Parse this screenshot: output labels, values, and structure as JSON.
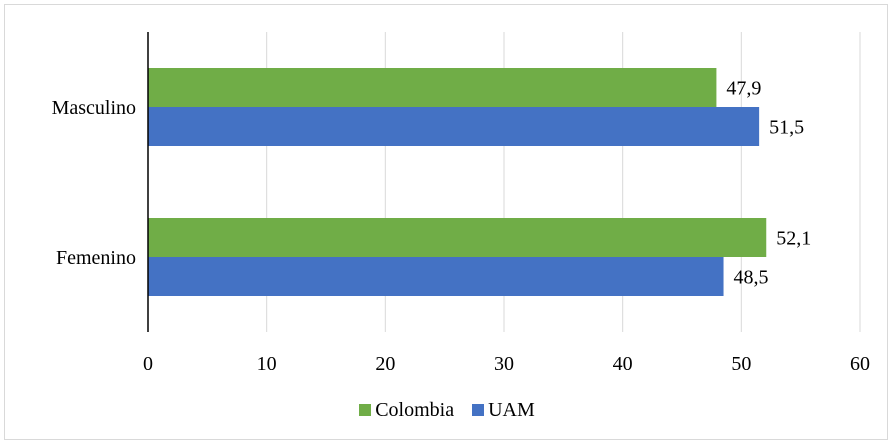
{
  "chart_data": {
    "type": "bar",
    "orientation": "horizontal",
    "categories": [
      "Masculino",
      "Femenino"
    ],
    "series": [
      {
        "name": "Colombia",
        "color": "#70ad47",
        "values": [
          47.9,
          52.1
        ],
        "labels": [
          "47,9",
          "52,1"
        ]
      },
      {
        "name": "UAM",
        "color": "#4472c4",
        "values": [
          51.5,
          48.5
        ],
        "labels": [
          "51,5",
          "48,5"
        ]
      }
    ],
    "xlim": [
      0,
      60
    ],
    "xticks": [
      0,
      10,
      20,
      30,
      40,
      50,
      60
    ],
    "title": "",
    "xlabel": "",
    "ylabel": "",
    "grid": "vertical",
    "legend": "bottom"
  }
}
